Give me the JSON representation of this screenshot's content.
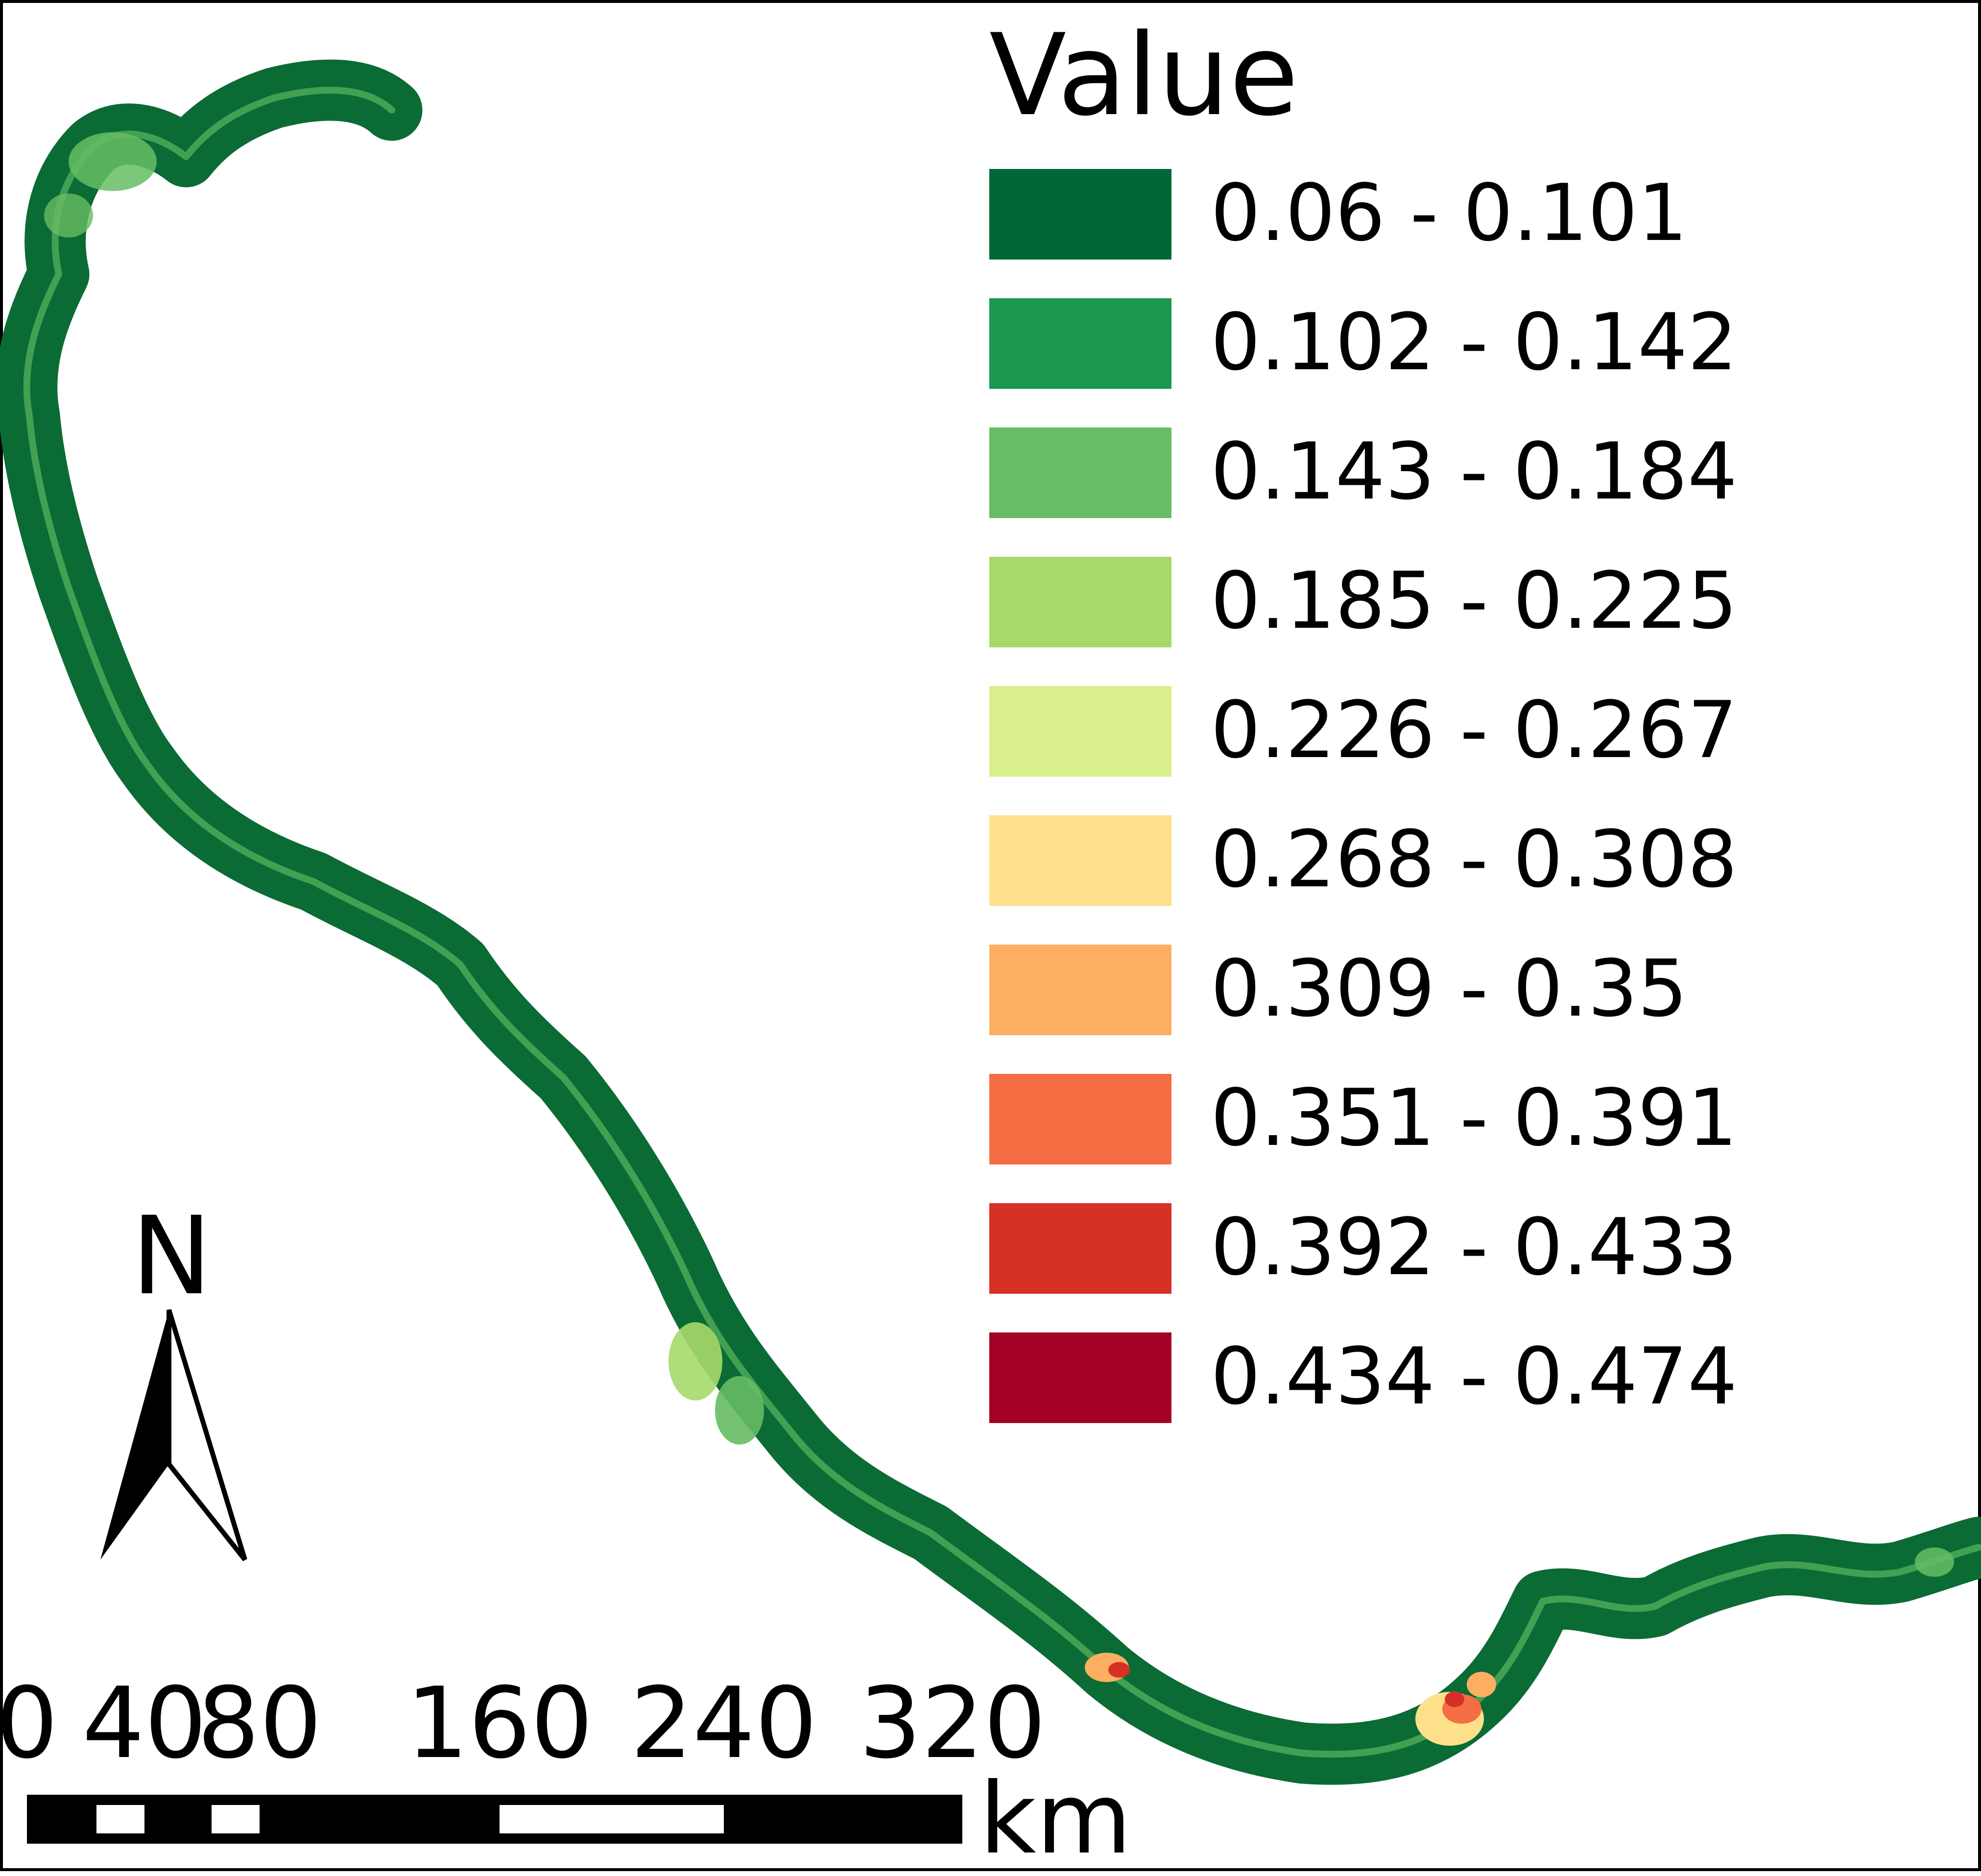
{
  "legend": {
    "title": "Value",
    "classes": [
      {
        "label": "0.06 - 0.101",
        "color": "#006837"
      },
      {
        "label": "0.102 - 0.142",
        "color": "#1a9850"
      },
      {
        "label": "0.143 - 0.184",
        "color": "#66bd63"
      },
      {
        "label": "0.185 - 0.225",
        "color": "#a6d96a"
      },
      {
        "label": "0.226 - 0.267",
        "color": "#d9ef8b"
      },
      {
        "label": "0.268 - 0.308",
        "color": "#fee08b"
      },
      {
        "label": "0.309 - 0.35",
        "color": "#fdae61"
      },
      {
        "label": "0.351 - 0.391",
        "color": "#f46d43"
      },
      {
        "label": "0.392 - 0.433",
        "color": "#d73027"
      },
      {
        "label": "0.434 - 0.474",
        "color": "#a50026"
      }
    ]
  },
  "north_arrow": {
    "letter": "N"
  },
  "scale_bar": {
    "ticks": [
      "0",
      "40",
      "80",
      "160",
      "240",
      "320"
    ],
    "unit": "km"
  }
}
